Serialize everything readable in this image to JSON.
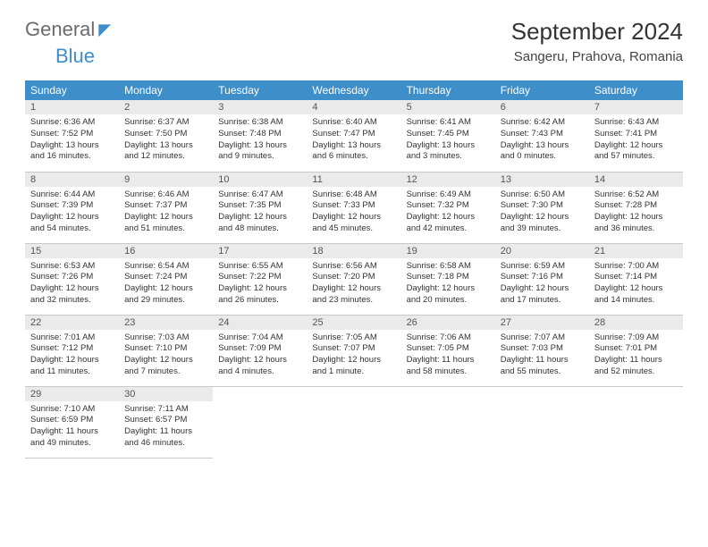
{
  "brand": {
    "primary": "General",
    "secondary": "Blue"
  },
  "title": "September 2024",
  "location": "Sangeru, Prahova, Romania",
  "colors": {
    "header_bg": "#3d8ec9",
    "header_fg": "#ffffff",
    "daynum_bg": "#eaeaea",
    "border": "#c9c9c9",
    "brand_gray": "#6b6b6b",
    "brand_blue": "#3d8ec9"
  },
  "weekdays": [
    "Sunday",
    "Monday",
    "Tuesday",
    "Wednesday",
    "Thursday",
    "Friday",
    "Saturday"
  ],
  "weeks": [
    [
      {
        "day": "1",
        "sunrise": "Sunrise: 6:36 AM",
        "sunset": "Sunset: 7:52 PM",
        "daylight1": "Daylight: 13 hours",
        "daylight2": "and 16 minutes."
      },
      {
        "day": "2",
        "sunrise": "Sunrise: 6:37 AM",
        "sunset": "Sunset: 7:50 PM",
        "daylight1": "Daylight: 13 hours",
        "daylight2": "and 12 minutes."
      },
      {
        "day": "3",
        "sunrise": "Sunrise: 6:38 AM",
        "sunset": "Sunset: 7:48 PM",
        "daylight1": "Daylight: 13 hours",
        "daylight2": "and 9 minutes."
      },
      {
        "day": "4",
        "sunrise": "Sunrise: 6:40 AM",
        "sunset": "Sunset: 7:47 PM",
        "daylight1": "Daylight: 13 hours",
        "daylight2": "and 6 minutes."
      },
      {
        "day": "5",
        "sunrise": "Sunrise: 6:41 AM",
        "sunset": "Sunset: 7:45 PM",
        "daylight1": "Daylight: 13 hours",
        "daylight2": "and 3 minutes."
      },
      {
        "day": "6",
        "sunrise": "Sunrise: 6:42 AM",
        "sunset": "Sunset: 7:43 PM",
        "daylight1": "Daylight: 13 hours",
        "daylight2": "and 0 minutes."
      },
      {
        "day": "7",
        "sunrise": "Sunrise: 6:43 AM",
        "sunset": "Sunset: 7:41 PM",
        "daylight1": "Daylight: 12 hours",
        "daylight2": "and 57 minutes."
      }
    ],
    [
      {
        "day": "8",
        "sunrise": "Sunrise: 6:44 AM",
        "sunset": "Sunset: 7:39 PM",
        "daylight1": "Daylight: 12 hours",
        "daylight2": "and 54 minutes."
      },
      {
        "day": "9",
        "sunrise": "Sunrise: 6:46 AM",
        "sunset": "Sunset: 7:37 PM",
        "daylight1": "Daylight: 12 hours",
        "daylight2": "and 51 minutes."
      },
      {
        "day": "10",
        "sunrise": "Sunrise: 6:47 AM",
        "sunset": "Sunset: 7:35 PM",
        "daylight1": "Daylight: 12 hours",
        "daylight2": "and 48 minutes."
      },
      {
        "day": "11",
        "sunrise": "Sunrise: 6:48 AM",
        "sunset": "Sunset: 7:33 PM",
        "daylight1": "Daylight: 12 hours",
        "daylight2": "and 45 minutes."
      },
      {
        "day": "12",
        "sunrise": "Sunrise: 6:49 AM",
        "sunset": "Sunset: 7:32 PM",
        "daylight1": "Daylight: 12 hours",
        "daylight2": "and 42 minutes."
      },
      {
        "day": "13",
        "sunrise": "Sunrise: 6:50 AM",
        "sunset": "Sunset: 7:30 PM",
        "daylight1": "Daylight: 12 hours",
        "daylight2": "and 39 minutes."
      },
      {
        "day": "14",
        "sunrise": "Sunrise: 6:52 AM",
        "sunset": "Sunset: 7:28 PM",
        "daylight1": "Daylight: 12 hours",
        "daylight2": "and 36 minutes."
      }
    ],
    [
      {
        "day": "15",
        "sunrise": "Sunrise: 6:53 AM",
        "sunset": "Sunset: 7:26 PM",
        "daylight1": "Daylight: 12 hours",
        "daylight2": "and 32 minutes."
      },
      {
        "day": "16",
        "sunrise": "Sunrise: 6:54 AM",
        "sunset": "Sunset: 7:24 PM",
        "daylight1": "Daylight: 12 hours",
        "daylight2": "and 29 minutes."
      },
      {
        "day": "17",
        "sunrise": "Sunrise: 6:55 AM",
        "sunset": "Sunset: 7:22 PM",
        "daylight1": "Daylight: 12 hours",
        "daylight2": "and 26 minutes."
      },
      {
        "day": "18",
        "sunrise": "Sunrise: 6:56 AM",
        "sunset": "Sunset: 7:20 PM",
        "daylight1": "Daylight: 12 hours",
        "daylight2": "and 23 minutes."
      },
      {
        "day": "19",
        "sunrise": "Sunrise: 6:58 AM",
        "sunset": "Sunset: 7:18 PM",
        "daylight1": "Daylight: 12 hours",
        "daylight2": "and 20 minutes."
      },
      {
        "day": "20",
        "sunrise": "Sunrise: 6:59 AM",
        "sunset": "Sunset: 7:16 PM",
        "daylight1": "Daylight: 12 hours",
        "daylight2": "and 17 minutes."
      },
      {
        "day": "21",
        "sunrise": "Sunrise: 7:00 AM",
        "sunset": "Sunset: 7:14 PM",
        "daylight1": "Daylight: 12 hours",
        "daylight2": "and 14 minutes."
      }
    ],
    [
      {
        "day": "22",
        "sunrise": "Sunrise: 7:01 AM",
        "sunset": "Sunset: 7:12 PM",
        "daylight1": "Daylight: 12 hours",
        "daylight2": "and 11 minutes."
      },
      {
        "day": "23",
        "sunrise": "Sunrise: 7:03 AM",
        "sunset": "Sunset: 7:10 PM",
        "daylight1": "Daylight: 12 hours",
        "daylight2": "and 7 minutes."
      },
      {
        "day": "24",
        "sunrise": "Sunrise: 7:04 AM",
        "sunset": "Sunset: 7:09 PM",
        "daylight1": "Daylight: 12 hours",
        "daylight2": "and 4 minutes."
      },
      {
        "day": "25",
        "sunrise": "Sunrise: 7:05 AM",
        "sunset": "Sunset: 7:07 PM",
        "daylight1": "Daylight: 12 hours",
        "daylight2": "and 1 minute."
      },
      {
        "day": "26",
        "sunrise": "Sunrise: 7:06 AM",
        "sunset": "Sunset: 7:05 PM",
        "daylight1": "Daylight: 11 hours",
        "daylight2": "and 58 minutes."
      },
      {
        "day": "27",
        "sunrise": "Sunrise: 7:07 AM",
        "sunset": "Sunset: 7:03 PM",
        "daylight1": "Daylight: 11 hours",
        "daylight2": "and 55 minutes."
      },
      {
        "day": "28",
        "sunrise": "Sunrise: 7:09 AM",
        "sunset": "Sunset: 7:01 PM",
        "daylight1": "Daylight: 11 hours",
        "daylight2": "and 52 minutes."
      }
    ],
    [
      {
        "day": "29",
        "sunrise": "Sunrise: 7:10 AM",
        "sunset": "Sunset: 6:59 PM",
        "daylight1": "Daylight: 11 hours",
        "daylight2": "and 49 minutes."
      },
      {
        "day": "30",
        "sunrise": "Sunrise: 7:11 AM",
        "sunset": "Sunset: 6:57 PM",
        "daylight1": "Daylight: 11 hours",
        "daylight2": "and 46 minutes."
      },
      null,
      null,
      null,
      null,
      null
    ]
  ]
}
